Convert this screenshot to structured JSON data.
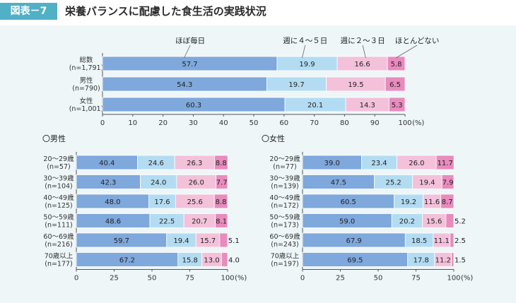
{
  "header": {
    "figure_label": "図表－7",
    "title": "栄養バランスに配慮した食生活の実践状況"
  },
  "colors": {
    "header_bg": "#4fb0c6",
    "panel_bg": "#eef6f8",
    "series": [
      "#7fa8dc",
      "#b3dcf2",
      "#f3c1da",
      "#e88bbd"
    ]
  },
  "chart_data": [
    {
      "type": "bar",
      "orientation": "horizontal",
      "stacked": true,
      "title": "",
      "series_labels": [
        "ほぼ毎日",
        "週に４～５日",
        "週に２～３日",
        "ほとんどない"
      ],
      "categories": [
        {
          "name": "総数",
          "n": "(n=1,791)"
        },
        {
          "name": "男性",
          "n": "(n=790)"
        },
        {
          "name": "女性",
          "n": "(n=1,001)"
        }
      ],
      "series": [
        {
          "name": "ほぼ毎日",
          "values": [
            57.7,
            54.3,
            60.3
          ]
        },
        {
          "name": "週に４～５日",
          "values": [
            19.9,
            19.7,
            20.1
          ]
        },
        {
          "name": "週に２～３日",
          "values": [
            16.6,
            19.5,
            14.3
          ]
        },
        {
          "name": "ほとんどない",
          "values": [
            5.8,
            6.5,
            5.3
          ]
        }
      ],
      "xlim": [
        0,
        100
      ],
      "xticks": [
        "0",
        "10",
        "20",
        "30",
        "40",
        "50",
        "60",
        "70",
        "80",
        "90",
        "100"
      ],
      "unit": "(%)"
    },
    {
      "type": "bar",
      "orientation": "horizontal",
      "stacked": true,
      "title": "〇男性",
      "categories": [
        {
          "name": "20～29歳",
          "n": "(n=57)"
        },
        {
          "name": "30～39歳",
          "n": "(n=104)"
        },
        {
          "name": "40～49歳",
          "n": "(n=125)"
        },
        {
          "name": "50～59歳",
          "n": "(n=111)"
        },
        {
          "name": "60～69歳",
          "n": "(n=216)"
        },
        {
          "name": "70歳以上",
          "n": "(n=177)"
        }
      ],
      "series": [
        {
          "name": "ほぼ毎日",
          "values": [
            40.4,
            42.3,
            48.0,
            48.6,
            59.7,
            67.2
          ]
        },
        {
          "name": "週に４～５日",
          "values": [
            24.6,
            24.0,
            17.6,
            22.5,
            19.4,
            15.8
          ]
        },
        {
          "name": "週に２～３日",
          "values": [
            26.3,
            26.0,
            25.6,
            20.7,
            15.7,
            13.0
          ]
        },
        {
          "name": "ほとんどない",
          "values": [
            8.8,
            7.7,
            8.8,
            8.1,
            5.1,
            4.0
          ]
        }
      ],
      "xlim": [
        0,
        100
      ],
      "xticks": [
        "0",
        "25",
        "50",
        "75",
        "100"
      ],
      "unit": "(%)"
    },
    {
      "type": "bar",
      "orientation": "horizontal",
      "stacked": true,
      "title": "〇女性",
      "categories": [
        {
          "name": "20～29歳",
          "n": "(n=77)"
        },
        {
          "name": "30～39歳",
          "n": "(n=139)"
        },
        {
          "name": "40～49歳",
          "n": "(n=172)"
        },
        {
          "name": "50～59歳",
          "n": "(n=173)"
        },
        {
          "name": "60～69歳",
          "n": "(n=243)"
        },
        {
          "name": "70歳以上",
          "n": "(n=197)"
        }
      ],
      "series": [
        {
          "name": "ほぼ毎日",
          "values": [
            39.0,
            47.5,
            60.5,
            59.0,
            67.9,
            69.5
          ]
        },
        {
          "name": "週に４～５日",
          "values": [
            23.4,
            25.2,
            19.2,
            20.2,
            18.5,
            17.8
          ]
        },
        {
          "name": "週に２～３日",
          "values": [
            26.0,
            19.4,
            11.6,
            15.6,
            11.1,
            11.2
          ]
        },
        {
          "name": "ほとんどない",
          "values": [
            11.7,
            7.9,
            8.7,
            5.2,
            2.5,
            1.5
          ]
        }
      ],
      "xlim": [
        0,
        100
      ],
      "xticks": [
        "0",
        "25",
        "50",
        "75",
        "100"
      ],
      "unit": "(%)"
    }
  ]
}
